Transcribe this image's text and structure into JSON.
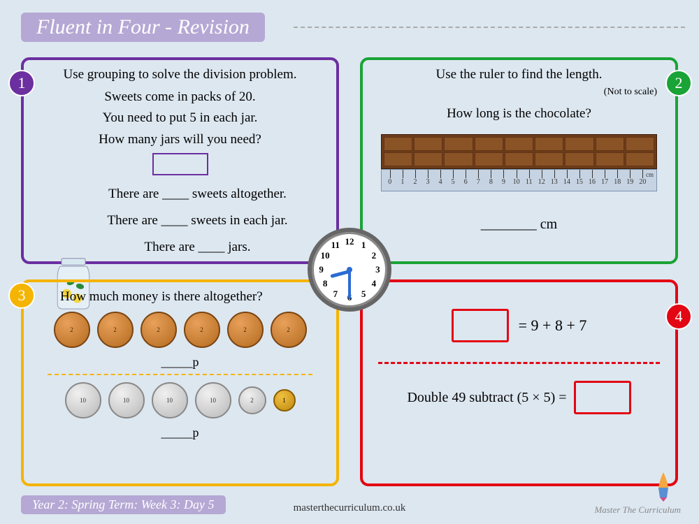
{
  "title": "Fluent in Four - Revision",
  "panels": {
    "p1": {
      "number": "1",
      "instruction": "Use grouping to solve the division problem.",
      "line1": "Sweets come in packs of 20.",
      "line2": "You need to put 5 in each jar.",
      "line3": "How many jars will you need?",
      "fill1": "There are ____ sweets altogether.",
      "fill2": "There are ____ sweets in each jar.",
      "fill3": "There are ____ jars.",
      "color": "#6b2fa0"
    },
    "p2": {
      "number": "2",
      "instruction": "Use the ruler to find the length.",
      "note": "(Not to scale)",
      "question": "How long is the chocolate?",
      "answer": "________ cm",
      "ruler_max": 20,
      "color": "#1aa336"
    },
    "p3": {
      "number": "3",
      "instruction": "How much money is there altogether?",
      "row1_coin": "TWO PENCE",
      "row1_value": "2",
      "row1_count": 6,
      "row2a_coin": "TEN PENCE",
      "row2a_value": "10",
      "row2a_count": 4,
      "row2b_coin": "TWO PENCE",
      "row2b_value": "2",
      "row2c_coin": "ONE PENNY",
      "row2c_value": "1",
      "ans_label": "_____p",
      "color": "#f5b400"
    },
    "p4": {
      "number": "4",
      "eq1": "= 9 + 8 + 7",
      "eq2": "Double 49 subtract (5 × 5) =",
      "color": "#e30613"
    }
  },
  "clock": {
    "hour": 8,
    "minute": 30
  },
  "footer": {
    "left": "Year 2: Spring Term: Week 3: Day 5",
    "mid": "masterthecurriculum.co.uk",
    "right": "Master The Curriculum"
  },
  "colors": {
    "bg": "#dde7f0",
    "title_bg": "#b5a8d4"
  }
}
